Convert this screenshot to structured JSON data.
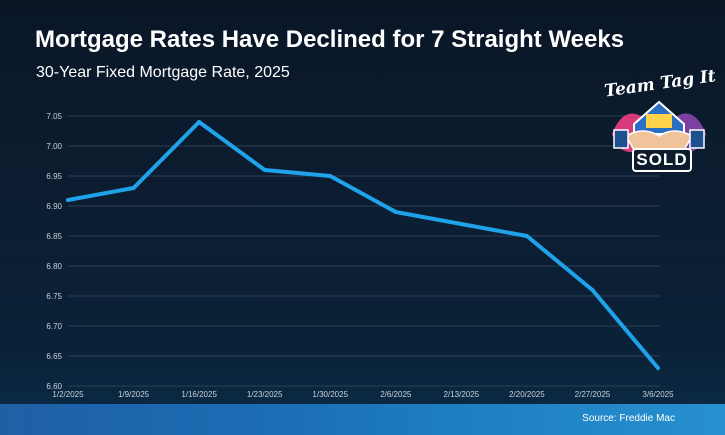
{
  "header": {
    "title": "Mortgage Rates Have Declined for 7 Straight Weeks",
    "subtitle": "30-Year Fixed Mortgage Rate, 2025"
  },
  "footer": {
    "source": "Source: Freddie Mac"
  },
  "logo": {
    "line1": "Team Tag It",
    "line2": "SOLD"
  },
  "colors": {
    "line": "#1ea2ea",
    "grid": "#2e3e52",
    "tick_text": "#c9d2dc",
    "footer": "#1e6fb8"
  },
  "chart_data": {
    "type": "line",
    "title": "Mortgage Rates Have Declined for 7 Straight Weeks",
    "subtitle": "30-Year Fixed Mortgage Rate, 2025",
    "xlabel": "",
    "ylabel": "",
    "categories": [
      "1/2/2025",
      "1/9/2025",
      "1/16/2025",
      "1/23/2025",
      "1/30/2025",
      "2/6/2025",
      "2/13/2025",
      "2/20/2025",
      "2/27/2025",
      "3/6/2025"
    ],
    "series": [
      {
        "name": "30-Year Fixed Mortgage Rate",
        "values": [
          6.91,
          6.93,
          7.04,
          6.96,
          6.95,
          6.89,
          6.87,
          6.85,
          6.76,
          6.63
        ]
      }
    ],
    "ylim": [
      6.6,
      7.05
    ],
    "yticks": [
      "6.60",
      "6.65",
      "6.70",
      "6.75",
      "6.80",
      "6.85",
      "6.90",
      "6.95",
      "7.00",
      "7.05"
    ],
    "grid": true,
    "legend": "none"
  }
}
